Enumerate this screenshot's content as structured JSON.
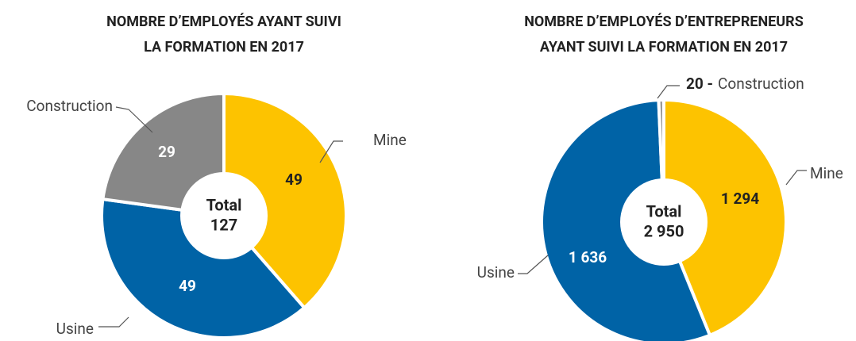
{
  "chart_data": [
    {
      "type": "donut",
      "title": [
        "NOMBRE D’EMPLOYÉS AYANT SUIVI",
        "LA FORMATION EN 2017"
      ],
      "categories": [
        "Mine",
        "Usine",
        "Construction"
      ],
      "values": [
        49,
        49,
        29
      ],
      "colors": [
        "#fdc300",
        "#0063a6",
        "#878787"
      ],
      "center": {
        "title": "Total",
        "value": 127
      }
    },
    {
      "type": "donut",
      "title": [
        "NOMBRE D’EMPLOYÉS D’ENTREPRENEURS",
        "AYANT SUIVI LA FORMATION EN 2017"
      ],
      "categories": [
        "Mine",
        "Usine",
        "Construction"
      ],
      "values": [
        1294,
        1636,
        20
      ],
      "value_labels": [
        "1 294",
        "1 636",
        "20 -"
      ],
      "colors": [
        "#fdc300",
        "#0063a6",
        "#9a9a9a"
      ],
      "center": {
        "title": "Total",
        "value": 2950,
        "label": "2 950"
      }
    }
  ]
}
